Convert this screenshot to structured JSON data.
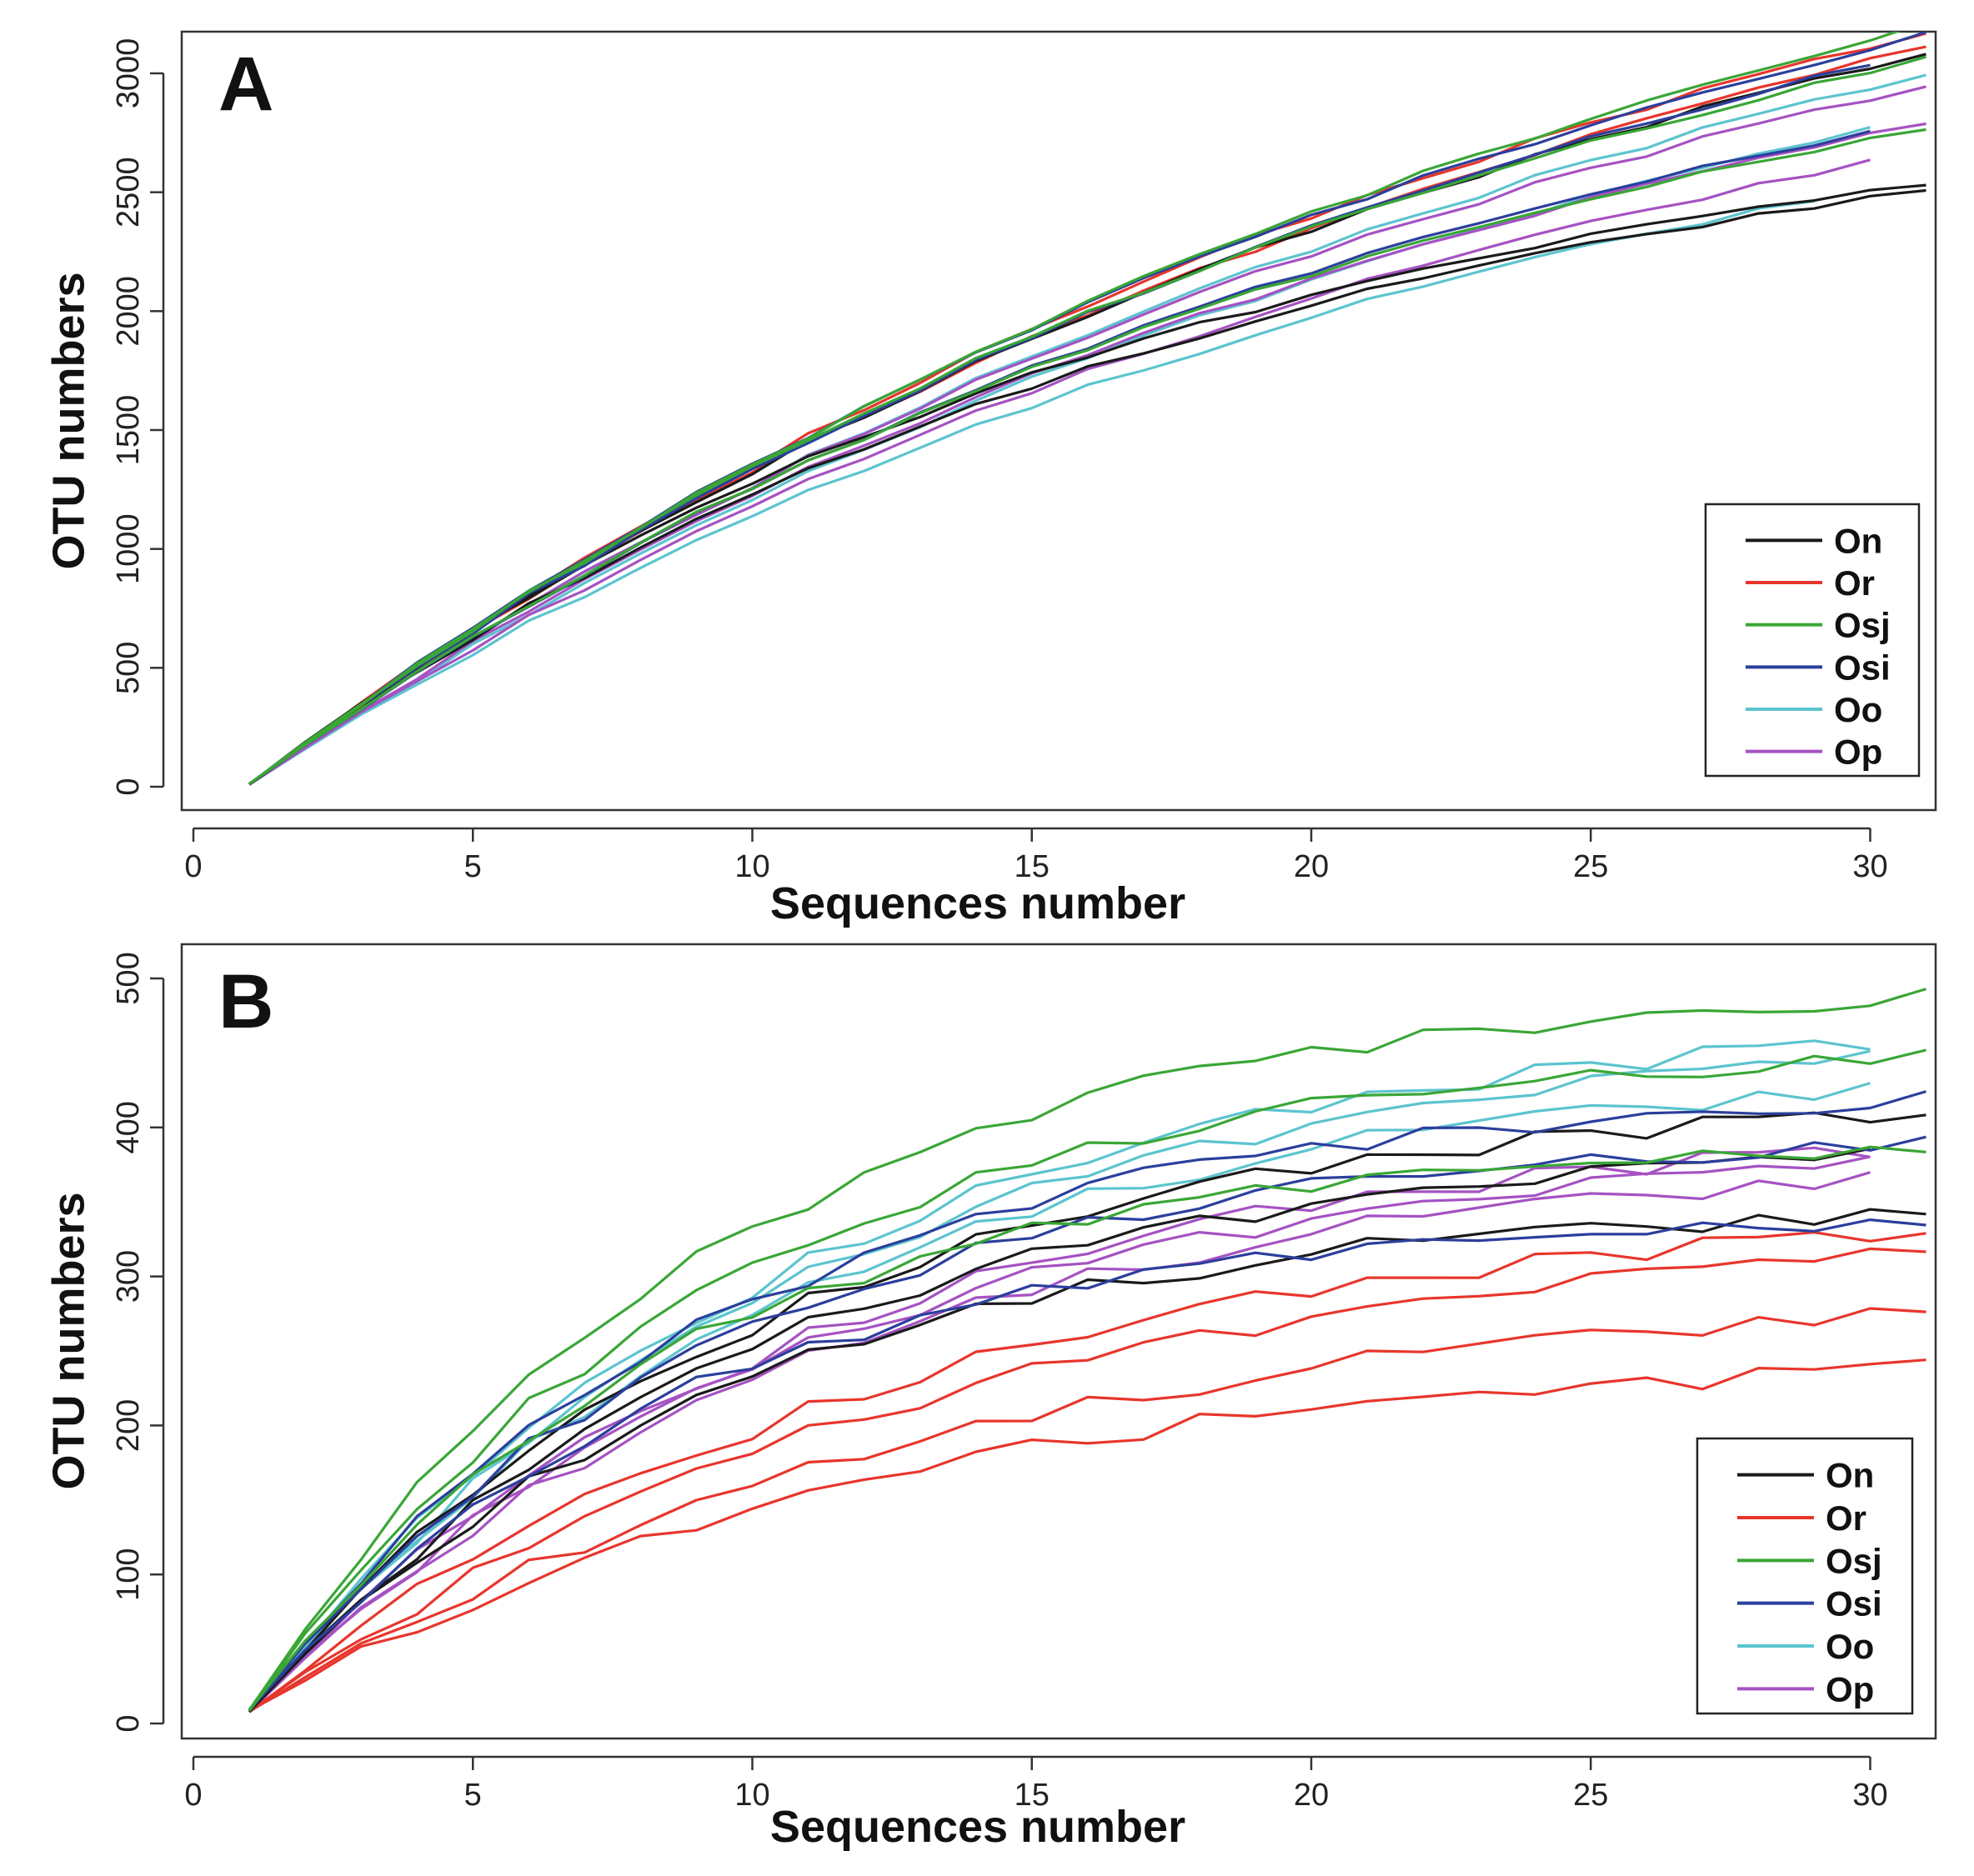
{
  "colors": {
    "On": "#1a1a1a",
    "Or": "#e8352c",
    "Osj": "#3aa636",
    "Osi": "#2b3f9c",
    "Oo": "#5cc4cf",
    "Op": "#a552c2"
  },
  "chart_data": [
    {
      "panel": "A",
      "type": "line",
      "xlabel": "Sequences number",
      "ylabel": "OTU numbers",
      "xlim": [
        0,
        31
      ],
      "ylim": [
        0,
        3000
      ],
      "xticks": [
        0,
        5,
        10,
        15,
        20,
        25,
        30
      ],
      "yticks": [
        0,
        500,
        1000,
        1500,
        2000,
        2500,
        3000
      ],
      "legend": {
        "position": "bottom-right",
        "entries": [
          "On",
          "Or",
          "Osj",
          "Osi",
          "Oo",
          "Op"
        ]
      },
      "groups": [
        {
          "name": "On",
          "curves": [
            {
              "asymptote": 4500,
              "k": 0.0384,
              "end": 31
            },
            {
              "asymptote": 3000,
              "k": 0.0608,
              "end": 31
            },
            {
              "asymptote": 3050,
              "k": 0.0568,
              "end": 31
            }
          ]
        },
        {
          "name": "Or",
          "curves": [
            {
              "asymptote": 4700,
              "k": 0.0373,
              "end": 31
            },
            {
              "asymptote": 4600,
              "k": 0.0373,
              "end": 31
            }
          ]
        },
        {
          "name": "Osj",
          "curves": [
            {
              "asymptote": 4800,
              "k": 0.0365,
              "end": 31
            },
            {
              "asymptote": 4300,
              "k": 0.0412,
              "end": 31
            },
            {
              "asymptote": 3700,
              "k": 0.0457,
              "end": 31
            }
          ]
        },
        {
          "name": "Osi",
          "curves": [
            {
              "asymptote": 4600,
              "k": 0.0385,
              "end": 31
            },
            {
              "asymptote": 4500,
              "k": 0.0386,
              "end": 30
            },
            {
              "asymptote": 3800,
              "k": 0.0442,
              "end": 30
            }
          ]
        },
        {
          "name": "Oo",
          "curves": [
            {
              "asymptote": 4500,
              "k": 0.0364,
              "end": 31
            },
            {
              "asymptote": 4100,
              "k": 0.0383,
              "end": 30
            },
            {
              "asymptote": 3500,
              "k": 0.0433,
              "end": 29
            }
          ]
        },
        {
          "name": "Op",
          "curves": [
            {
              "asymptote": 4300,
              "k": 0.0384,
              "end": 31
            },
            {
              "asymptote": 3900,
              "k": 0.0414,
              "end": 31
            },
            {
              "asymptote": 3700,
              "k": 0.0423,
              "end": 30
            }
          ]
        }
      ]
    },
    {
      "panel": "B",
      "type": "line",
      "xlabel": "Sequences number",
      "ylabel": "OTU numbers",
      "xlim": [
        0,
        31
      ],
      "ylim": [
        0,
        500
      ],
      "xticks": [
        0,
        5,
        10,
        15,
        20,
        25,
        30
      ],
      "yticks": [
        0,
        100,
        200,
        300,
        400,
        500
      ],
      "legend": {
        "position": "bottom-right",
        "entries": [
          "On",
          "Or",
          "Osj",
          "Osi",
          "Oo",
          "Op"
        ]
      },
      "groups": [
        {
          "name": "On",
          "curves": [
            {
              "asymptote": 430,
              "k": 0.105,
              "end": 31
            },
            {
              "asymptote": 395,
              "k": 0.11,
              "end": 30
            },
            {
              "asymptote": 350,
              "k": 0.12,
              "end": 31
            }
          ]
        },
        {
          "name": "Or",
          "curves": [
            {
              "asymptote": 360,
              "k": 0.085,
              "end": 31
            },
            {
              "asymptote": 345,
              "k": 0.08,
              "end": 31
            },
            {
              "asymptote": 300,
              "k": 0.082,
              "end": 31
            },
            {
              "asymptote": 255,
              "k": 0.09,
              "end": 31
            }
          ]
        },
        {
          "name": "Osj",
          "curves": [
            {
              "asymptote": 500,
              "k": 0.12,
              "end": 31
            },
            {
              "asymptote": 460,
              "k": 0.12,
              "end": 31
            },
            {
              "asymptote": 395,
              "k": 0.13,
              "end": 31
            }
          ]
        },
        {
          "name": "Osi",
          "curves": [
            {
              "asymptote": 430,
              "k": 0.118,
              "end": 31
            },
            {
              "asymptote": 400,
              "k": 0.12,
              "end": 31
            },
            {
              "asymptote": 345,
              "k": 0.13,
              "end": 31
            }
          ]
        },
        {
          "name": "Oo",
          "curves": [
            {
              "asymptote": 485,
              "k": 0.1,
              "end": 30
            },
            {
              "asymptote": 470,
              "k": 0.1,
              "end": 30
            },
            {
              "asymptote": 445,
              "k": 0.105,
              "end": 30
            }
          ]
        },
        {
          "name": "Op",
          "curves": [
            {
              "asymptote": 410,
              "k": 0.098,
              "end": 30
            },
            {
              "asymptote": 395,
              "k": 0.1,
              "end": 30
            },
            {
              "asymptote": 385,
              "k": 0.1,
              "end": 30
            }
          ]
        }
      ]
    }
  ]
}
